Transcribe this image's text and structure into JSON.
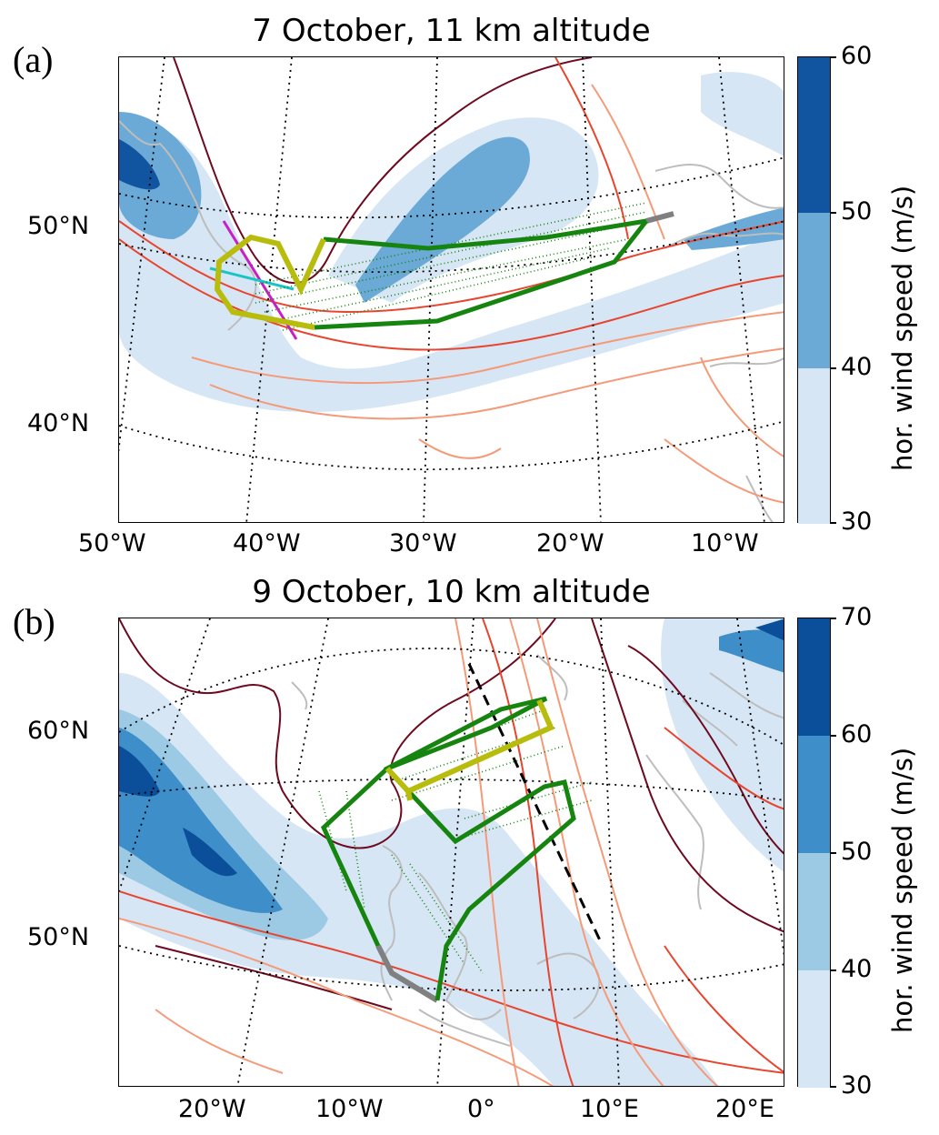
{
  "panel_a": {
    "letter": "(a)",
    "title": "7 October, 11 km altitude",
    "lat_labels": [
      "50°N",
      "40°N"
    ],
    "lon_labels": [
      "50°W",
      "40°W",
      "30°W",
      "20°W",
      "10°W"
    ],
    "colorbar": {
      "label": "hor. wind speed (m/s)",
      "ticks": [
        "60",
        "50",
        "40",
        "30"
      ],
      "colors": [
        "#1155a0",
        "#6baad6",
        "#d6e6f5"
      ]
    }
  },
  "panel_b": {
    "letter": "(b)",
    "title": "9 October, 10 km altitude",
    "lat_labels": [
      "60°N",
      "50°N"
    ],
    "lon_labels": [
      "20°W",
      "10°W",
      "0°",
      "10°E",
      "20°E"
    ],
    "colorbar": {
      "label": "hor. wind speed (m/s)",
      "ticks": [
        "70",
        "60",
        "50",
        "40",
        "30"
      ],
      "colors": [
        "#0b4f9a",
        "#3d8ec9",
        "#9ccae4",
        "#d6e6f5"
      ]
    }
  },
  "colors": {
    "flight_track": "#16850f",
    "highlight_leg": "#b8bd0d",
    "ferry_leg": "#808080",
    "coastline": "#bdbdbd",
    "contour_dark": "#6e0a1f",
    "contour_red": "#e8452f",
    "contour_light": "#f59a78",
    "cross_section_magenta": "#c71ec7",
    "cross_section_cyan": "#19c4c4"
  }
}
